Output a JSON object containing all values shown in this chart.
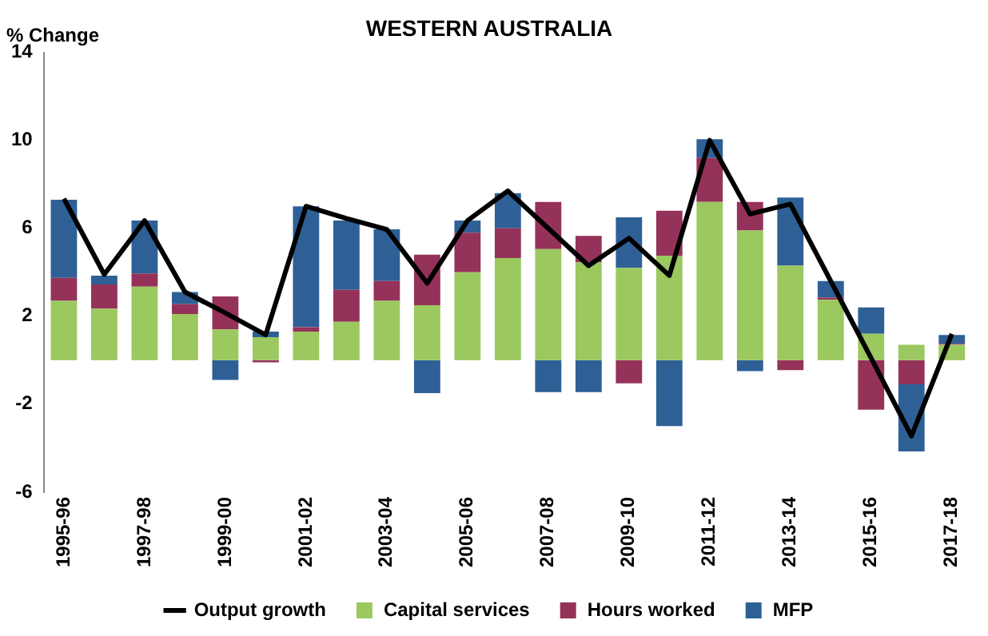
{
  "chart_data": {
    "type": "bar",
    "title": "WESTERN AUSTRALIA",
    "ylabel": "% Change",
    "stacked": true,
    "categories": [
      "1995-96",
      null,
      "1997-98",
      null,
      "1999-00",
      null,
      "2001-02",
      null,
      "2003-04",
      null,
      "2005-06",
      null,
      "2007-08",
      null,
      "2009-10",
      null,
      "2011-12",
      null,
      "2013-14",
      null,
      "2015-16",
      null,
      "2017-18"
    ],
    "series": [
      {
        "name": "Capital services",
        "color": "#9bc85f",
        "values": [
          2.7,
          2.35,
          3.35,
          2.1,
          1.4,
          1.05,
          1.3,
          1.75,
          2.7,
          2.5,
          4.0,
          4.65,
          5.05,
          4.45,
          4.2,
          4.75,
          7.2,
          5.9,
          4.3,
          2.75,
          1.2,
          0.7,
          0.7
        ]
      },
      {
        "name": "Hours worked",
        "color": "#953259",
        "values": [
          1.05,
          1.1,
          0.6,
          0.45,
          1.5,
          -0.1,
          0.2,
          1.45,
          0.9,
          2.3,
          1.8,
          1.35,
          2.15,
          1.2,
          -1.05,
          2.05,
          2.0,
          1.3,
          -0.45,
          0.1,
          -2.25,
          -1.1,
          0.05
        ]
      },
      {
        "name": "MFP",
        "color": "#2e6096",
        "values": [
          3.55,
          0.4,
          2.4,
          0.55,
          -0.9,
          0.25,
          5.5,
          3.15,
          2.35,
          -1.5,
          0.55,
          1.6,
          -1.45,
          -1.45,
          2.3,
          -3.0,
          0.85,
          -0.5,
          3.1,
          0.75,
          1.2,
          -3.05,
          0.4
        ]
      },
      {
        "name": "Output growth",
        "type": "line",
        "color": "#000000",
        "values": [
          7.35,
          3.9,
          6.35,
          3.1,
          2.15,
          1.15,
          7.0,
          6.45,
          5.95,
          3.5,
          6.35,
          7.7,
          6.0,
          4.3,
          5.55,
          3.85,
          10.0,
          6.65,
          7.1,
          3.6,
          0.1,
          -3.45,
          1.2
        ]
      }
    ],
    "ylim": [
      -6,
      14
    ],
    "yticks": [
      -6,
      -2,
      2,
      6,
      10,
      14
    ],
    "grid": false,
    "legend": "bottom",
    "marker": "none"
  }
}
